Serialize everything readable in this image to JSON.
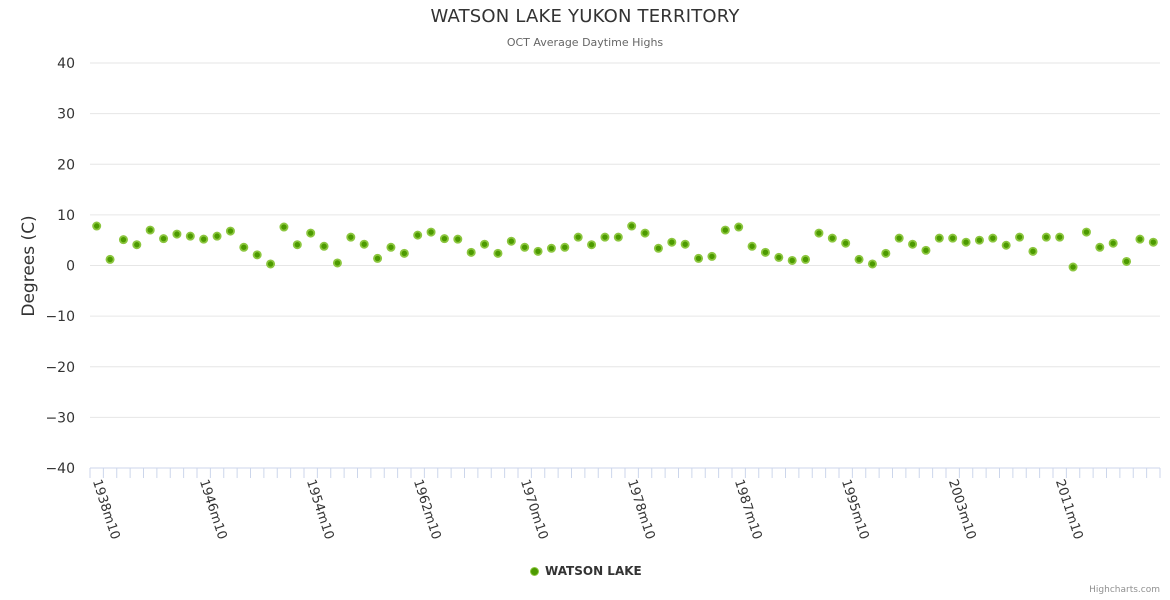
{
  "chart_data": {
    "type": "scatter",
    "title": "WATSON LAKE YUKON TERRITORY",
    "subtitle": "OCT Average Daytime Highs",
    "xlabel": "",
    "ylabel": "Degrees (C)",
    "ylim": [
      -40,
      40
    ],
    "yticks": [
      "40",
      "30",
      "20",
      "10",
      "0",
      "−10",
      "−20",
      "−30",
      "−40"
    ],
    "ytick_values": [
      40,
      30,
      20,
      10,
      0,
      -10,
      -20,
      -30,
      -40
    ],
    "grid": true,
    "legend_position": "bottom-center",
    "x_tick_labels": [
      "1938m10",
      "1946m10",
      "1954m10",
      "1962m10",
      "1970m10",
      "1978m10",
      "1987m10",
      "1995m10",
      "2003m10",
      "2011m10"
    ],
    "x_tick_label_indices": [
      0,
      8,
      16,
      24,
      32,
      40,
      48,
      56,
      64,
      72
    ],
    "categories": [
      "1938m10",
      "1939m10",
      "1940m10",
      "1941m10",
      "1942m10",
      "1943m10",
      "1944m10",
      "1945m10",
      "1946m10",
      "1947m10",
      "1948m10",
      "1949m10",
      "1950m10",
      "1951m10",
      "1952m10",
      "1953m10",
      "1954m10",
      "1955m10",
      "1956m10",
      "1957m10",
      "1958m10",
      "1959m10",
      "1960m10",
      "1961m10",
      "1962m10",
      "1963m10",
      "1964m10",
      "1965m10",
      "1966m10",
      "1967m10",
      "1968m10",
      "1969m10",
      "1970m10",
      "1971m10",
      "1972m10",
      "1973m10",
      "1974m10",
      "1975m10",
      "1976m10",
      "1977m10",
      "1978m10",
      "1979m10",
      "1980m10",
      "1981m10",
      "1982m10",
      "1984m10",
      "1985m10",
      "1986m10",
      "1987m10",
      "1988m10",
      "1989m10",
      "1990m10",
      "1991m10",
      "1992m10",
      "1993m10",
      "1994m10",
      "1995m10",
      "1996m10",
      "1997m10",
      "1998m10",
      "1999m10",
      "2000m10",
      "2001m10",
      "2002m10",
      "2003m10",
      "2004m10",
      "2005m10",
      "2006m10",
      "2007m10",
      "2008m10",
      "2009m10",
      "2010m10",
      "2011m10",
      "2012m10",
      "2013m10",
      "2014m10",
      "2015m10",
      "2016m10",
      "2017m10",
      "2018m10"
    ],
    "series": [
      {
        "name": "WATSON LAKE",
        "color": "#4c9a00",
        "outline_color": "#8cc63f",
        "values": [
          7.8,
          1.2,
          5.1,
          4.1,
          7.0,
          5.3,
          6.2,
          5.8,
          5.2,
          5.8,
          6.8,
          3.6,
          2.1,
          0.3,
          7.6,
          4.1,
          6.4,
          3.8,
          0.5,
          5.6,
          4.2,
          1.4,
          3.6,
          2.4,
          6.0,
          6.6,
          5.3,
          5.2,
          2.6,
          4.2,
          2.4,
          4.8,
          3.6,
          2.8,
          3.4,
          3.6,
          5.6,
          4.1,
          5.6,
          5.6,
          7.8,
          6.4,
          3.4,
          4.6,
          4.2,
          1.4,
          1.8,
          7.0,
          7.6,
          3.8,
          2.6,
          1.6,
          1.0,
          1.2,
          6.4,
          5.4,
          4.4,
          1.2,
          0.3,
          2.4,
          5.4,
          4.2,
          3.0,
          5.4,
          5.4,
          4.6,
          5.0,
          5.4,
          4.0,
          5.6,
          2.8,
          5.6,
          5.6,
          -0.3,
          6.6,
          3.6,
          4.4,
          0.8,
          5.2,
          4.6
        ]
      }
    ]
  },
  "credits": "Highcharts.com"
}
